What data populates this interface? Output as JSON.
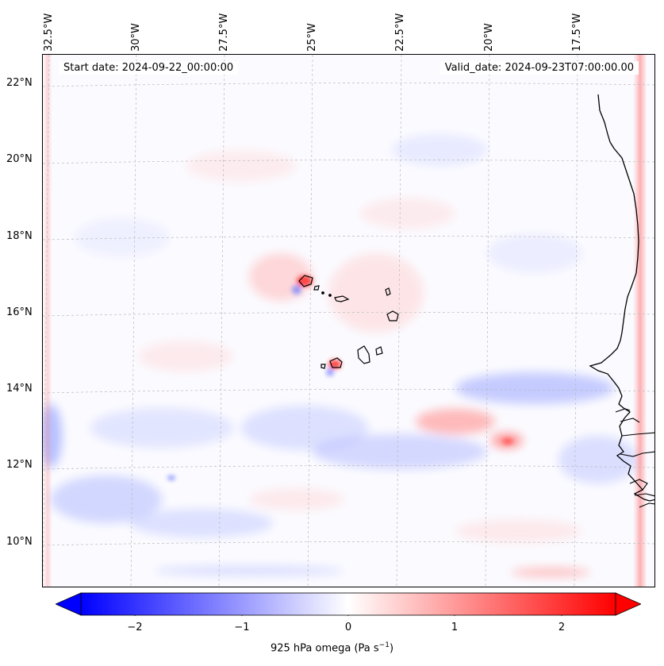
{
  "map": {
    "start_date": "Start date: 2024-09-22_00:00:00",
    "valid_date": "Valid_date: 2024-09-23T07:00:00.00",
    "lon_ticks": [
      "32.5°W",
      "30°W",
      "27.5°W",
      "25°W",
      "22.5°W",
      "20°W",
      "17.5°W"
    ],
    "lat_ticks": [
      "22°N",
      "20°N",
      "18°N",
      "16°N",
      "14°N",
      "12°N",
      "10°N"
    ],
    "coastline_color": "#000000",
    "gridline_color": "#bbbbbb"
  },
  "colorbar": {
    "ticks": [
      "−2",
      "−1",
      "0",
      "1",
      "2"
    ],
    "label_main": "925 hPa omega (Pa s",
    "label_sup": "−1",
    "label_end": ")",
    "cmap": "bwr",
    "range": [
      -2.6,
      2.6
    ],
    "color_min": "#0000ff",
    "color_mid": "#ffffff",
    "color_max": "#ff0000"
  }
}
